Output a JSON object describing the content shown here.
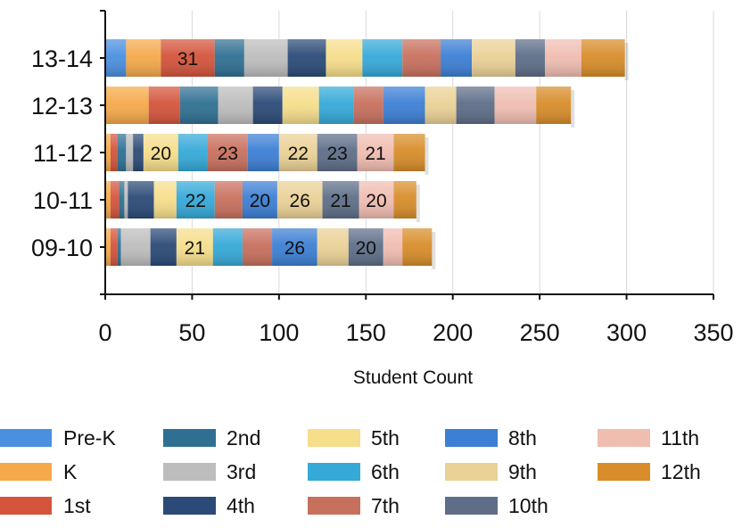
{
  "chart_data": {
    "type": "bar",
    "orientation": "horizontal",
    "stacked": true,
    "title": "",
    "xlabel": "Student Count",
    "ylabel": "",
    "xlim": [
      0,
      350
    ],
    "xticks": [
      "0",
      "50",
      "100",
      "150",
      "200",
      "250",
      "300",
      "350"
    ],
    "grid": "vertical",
    "legend_position": "bottom",
    "categories": [
      "13-14",
      "12-13",
      "11-12",
      "10-11",
      "09-10"
    ],
    "series": [
      {
        "name": "Pre-K",
        "color": "#4A8FE0",
        "values": [
          12,
          0,
          0,
          0,
          0
        ],
        "labels": [
          "",
          "",
          "",
          "",
          ""
        ]
      },
      {
        "name": "K",
        "color": "#F5A94A",
        "values": [
          20,
          25,
          3,
          3,
          3
        ],
        "labels": [
          "",
          "",
          "",
          "",
          ""
        ]
      },
      {
        "name": "1st",
        "color": "#D4543C",
        "values": [
          31,
          18,
          4,
          5,
          4
        ],
        "labels": [
          "31",
          "",
          "",
          "",
          ""
        ]
      },
      {
        "name": "2nd",
        "color": "#2F7092",
        "values": [
          17,
          22,
          5,
          3,
          2
        ],
        "labels": [
          "",
          "",
          "",
          "",
          ""
        ]
      },
      {
        "name": "3rd",
        "color": "#BDBDBD",
        "values": [
          25,
          20,
          4,
          2,
          17
        ],
        "labels": [
          "",
          "",
          "",
          "",
          ""
        ]
      },
      {
        "name": "4th",
        "color": "#2B4A77",
        "values": [
          22,
          17,
          6,
          15,
          15
        ],
        "labels": [
          "",
          "",
          "",
          "",
          ""
        ]
      },
      {
        "name": "5th",
        "color": "#F6DE8B",
        "values": [
          21,
          21,
          20,
          13,
          21
        ],
        "labels": [
          "",
          "",
          "20",
          "",
          "21"
        ]
      },
      {
        "name": "6th",
        "color": "#35A9D8",
        "values": [
          23,
          20,
          17,
          22,
          17
        ],
        "labels": [
          "",
          "",
          "",
          "22",
          ""
        ]
      },
      {
        "name": "7th",
        "color": "#C8705E",
        "values": [
          22,
          17,
          23,
          16,
          17
        ],
        "labels": [
          "",
          "",
          "23",
          "",
          ""
        ]
      },
      {
        "name": "8th",
        "color": "#3C7FD4",
        "values": [
          18,
          24,
          18,
          20,
          26
        ],
        "labels": [
          "",
          "",
          "",
          "20",
          "26"
        ]
      },
      {
        "name": "9th",
        "color": "#EAD196",
        "values": [
          25,
          18,
          22,
          26,
          18
        ],
        "labels": [
          "",
          "",
          "22",
          "26",
          ""
        ]
      },
      {
        "name": "10th",
        "color": "#5E6E88",
        "values": [
          17,
          22,
          23,
          21,
          20
        ],
        "labels": [
          "",
          "",
          "23",
          "21",
          "20"
        ]
      },
      {
        "name": "11th",
        "color": "#F0BDB1",
        "values": [
          21,
          24,
          21,
          20,
          11
        ],
        "labels": [
          "",
          "",
          "21",
          "20",
          ""
        ]
      },
      {
        "name": "12th",
        "color": "#D88D2A",
        "values": [
          25,
          20,
          18,
          13,
          17
        ],
        "labels": [
          "",
          "",
          "",
          "",
          ""
        ]
      }
    ]
  }
}
